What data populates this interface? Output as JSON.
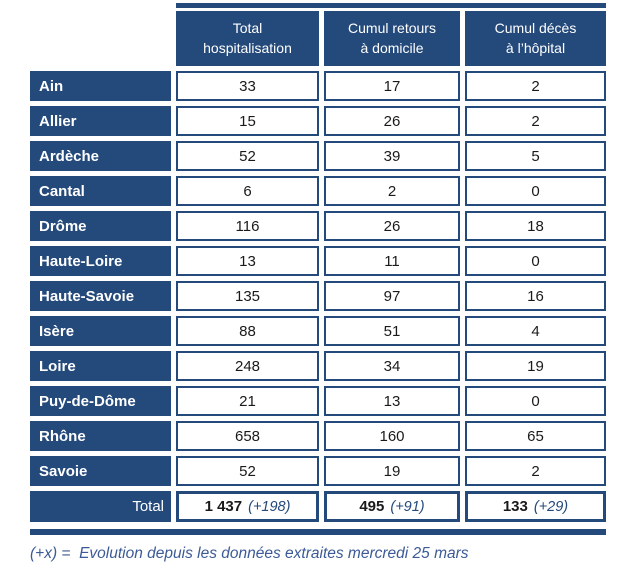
{
  "colors": {
    "navy": "#24497b",
    "numtext": "#1a1a1a",
    "footer": "#3b5a96"
  },
  "table": {
    "column_headers": [
      {
        "line1": "Total",
        "line2": "hospitalisation"
      },
      {
        "line1": "Cumul retours",
        "line2": "à domicile"
      },
      {
        "line1": "Cumul décès",
        "line2": "à l’hôpital"
      }
    ],
    "rows": [
      {
        "label": "Ain",
        "values": [
          "33",
          "17",
          "2"
        ]
      },
      {
        "label": "Allier",
        "values": [
          "15",
          "26",
          "2"
        ]
      },
      {
        "label": "Ardèche",
        "values": [
          "52",
          "39",
          "5"
        ]
      },
      {
        "label": "Cantal",
        "values": [
          "6",
          "2",
          "0"
        ]
      },
      {
        "label": "Drôme",
        "values": [
          "116",
          "26",
          "18"
        ]
      },
      {
        "label": "Haute-Loire",
        "values": [
          "13",
          "11",
          "0"
        ]
      },
      {
        "label": "Haute-Savoie",
        "values": [
          "135",
          "97",
          "16"
        ]
      },
      {
        "label": "Isère",
        "values": [
          "88",
          "51",
          "4"
        ]
      },
      {
        "label": "Loire",
        "values": [
          "248",
          "34",
          "19"
        ]
      },
      {
        "label": "Puy-de-Dôme",
        "values": [
          "21",
          "13",
          "0"
        ]
      },
      {
        "label": "Rhône",
        "values": [
          "658",
          "160",
          "65"
        ]
      },
      {
        "label": "Savoie",
        "values": [
          "52",
          "19",
          "2"
        ]
      }
    ],
    "total": {
      "label": "Total",
      "values": [
        {
          "main": "1 437",
          "delta": "(+198)"
        },
        {
          "main": "495",
          "delta": "(+91)"
        },
        {
          "main": "133",
          "delta": "(+29)"
        }
      ]
    }
  },
  "footer": {
    "note": "(+x) =  Evolution depuis les données extraites mercredi 25 mars"
  }
}
